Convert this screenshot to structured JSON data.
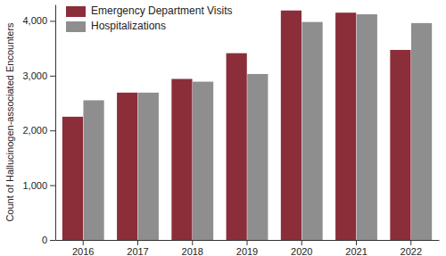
{
  "chart_data": {
    "type": "bar",
    "categories": [
      "2016",
      "2017",
      "2018",
      "2019",
      "2020",
      "2021",
      "2022"
    ],
    "series": [
      {
        "name": "Emergency Department Visits",
        "color": "#8b2e3a",
        "values": [
          2250,
          2690,
          2940,
          3410,
          4190,
          4150,
          3470
        ]
      },
      {
        "name": "Hospitalizations",
        "color": "#8e8e8e",
        "values": [
          2550,
          2690,
          2890,
          3030,
          3980,
          4120,
          3960
        ]
      }
    ],
    "y_label": "Count of Hallucinogen-associated Encounters",
    "ylim": [
      0,
      4300
    ],
    "yticks": [
      0,
      {
        "value": 1000,
        "label": "1,000"
      },
      {
        "value": 2000,
        "label": "2,000"
      },
      {
        "value": 3000,
        "label": "3,000"
      },
      {
        "value": 4000,
        "label": "4,000"
      }
    ],
    "grid": false,
    "legend": "top-left"
  }
}
